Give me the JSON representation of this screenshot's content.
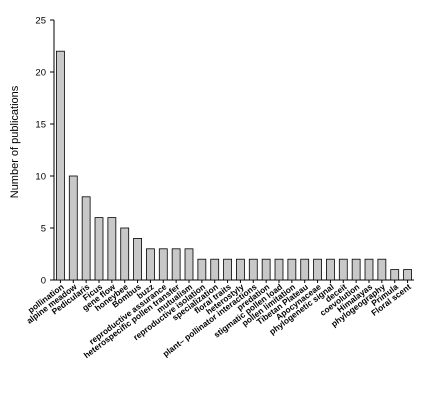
{
  "chart_data": {
    "type": "bar",
    "title": "",
    "xlabel": "",
    "ylabel": "Number of publications",
    "ylim": [
      0,
      25
    ],
    "yticks": [
      0,
      5,
      10,
      15,
      20,
      25
    ],
    "grid": false,
    "categories": [
      "pollination",
      "alpine meadow",
      "Pedicularis",
      "Ficus",
      "gene flow",
      "honeybee",
      "Bombus",
      "buzz",
      "reproductive assurance",
      "heterospecific pollen transfer",
      "mutualism",
      "reproductive isolation",
      "specialization",
      "floral traits",
      "heterostyly",
      "plant– pollinator interactions",
      "predation",
      "stigmatic pollen load",
      "pollen limitation",
      "Tibetan Plateau",
      "Apocynaceae",
      "phylogenetic signal",
      "deceit",
      "coevolution",
      "Himalayas",
      "phylogeography",
      "Primula",
      "Floral scent"
    ],
    "values": [
      22,
      10,
      8,
      6,
      6,
      5,
      4,
      3,
      3,
      3,
      3,
      2,
      2,
      2,
      2,
      2,
      2,
      2,
      2,
      2,
      2,
      2,
      2,
      2,
      2,
      2,
      1,
      1
    ]
  }
}
